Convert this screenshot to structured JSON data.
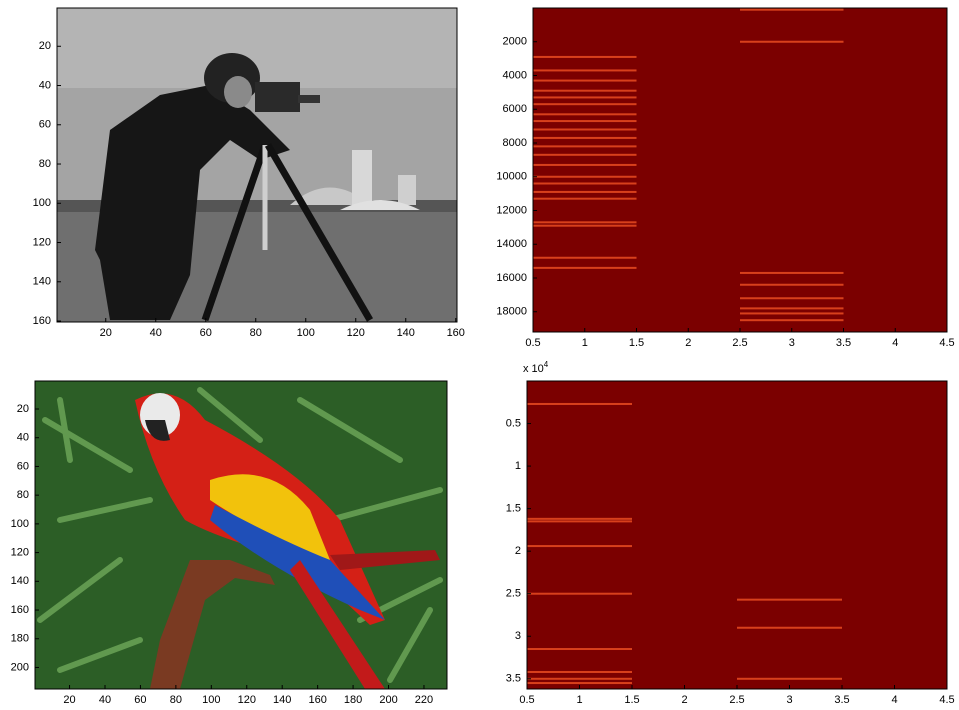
{
  "chart_data": [
    {
      "type": "image",
      "xlim": [
        0.5,
        160.5
      ],
      "ylim": [
        0.5,
        160.5
      ],
      "y_reversed": true,
      "xticks": [
        20,
        40,
        60,
        80,
        100,
        120,
        140,
        160
      ],
      "yticks": [
        20,
        40,
        60,
        80,
        100,
        120,
        140,
        160
      ]
    },
    {
      "type": "heatmap",
      "xlim": [
        0.5,
        4.5
      ],
      "ylim": [
        0.5,
        19200
      ],
      "y_reversed": true,
      "xticks": [
        0.5,
        1,
        1.5,
        2,
        2.5,
        3,
        3.5,
        4,
        4.5
      ],
      "yticks": [
        2000,
        4000,
        6000,
        8000,
        10000,
        12000,
        14000,
        16000,
        18000
      ],
      "color": "#7b0000",
      "stripe_color": "#d8401c",
      "series": [
        {
          "x_range": [
            0.5,
            1.5
          ],
          "rows": [
            2900,
            3700,
            4300,
            4900,
            5300,
            5700,
            6300,
            6700,
            7200,
            7700,
            8200,
            8700,
            9300,
            10000,
            10400,
            10900,
            11300,
            12700,
            12900,
            14800,
            15400
          ]
        },
        {
          "x_range": [
            2.5,
            3.5
          ],
          "rows": [
            100,
            2000,
            15700,
            16400,
            17200,
            17800,
            18100,
            18500
          ]
        }
      ]
    },
    {
      "type": "image",
      "xlim": [
        0.5,
        233
      ],
      "ylim": [
        0.5,
        215
      ],
      "y_reversed": true,
      "xticks": [
        20,
        40,
        60,
        80,
        100,
        120,
        140,
        160,
        180,
        200,
        220
      ],
      "yticks": [
        20,
        40,
        60,
        80,
        100,
        120,
        140,
        160,
        180,
        200
      ]
    },
    {
      "type": "heatmap",
      "xlim": [
        0.5,
        4.5
      ],
      "ylim": [
        0,
        3.62
      ],
      "y_reversed": true,
      "xticks": [
        0.5,
        1,
        1.5,
        2,
        2.5,
        3,
        3.5,
        4,
        4.5
      ],
      "yticks": [
        0.5,
        1,
        1.5,
        2,
        2.5,
        3,
        3.5
      ],
      "y_multiplier": {
        "base": "x 10",
        "exponent": "4"
      },
      "color": "#7b0000",
      "stripe_color": "#d8401c",
      "series": [
        {
          "x_range": [
            0.5,
            1.5
          ],
          "rows": [
            0.27,
            1.62,
            1.65,
            1.94,
            2.5,
            3.15,
            3.42,
            3.5,
            3.55
          ]
        },
        {
          "x_range": [
            2.5,
            3.5
          ],
          "rows": [
            2.57,
            2.9,
            3.5
          ]
        }
      ]
    }
  ]
}
